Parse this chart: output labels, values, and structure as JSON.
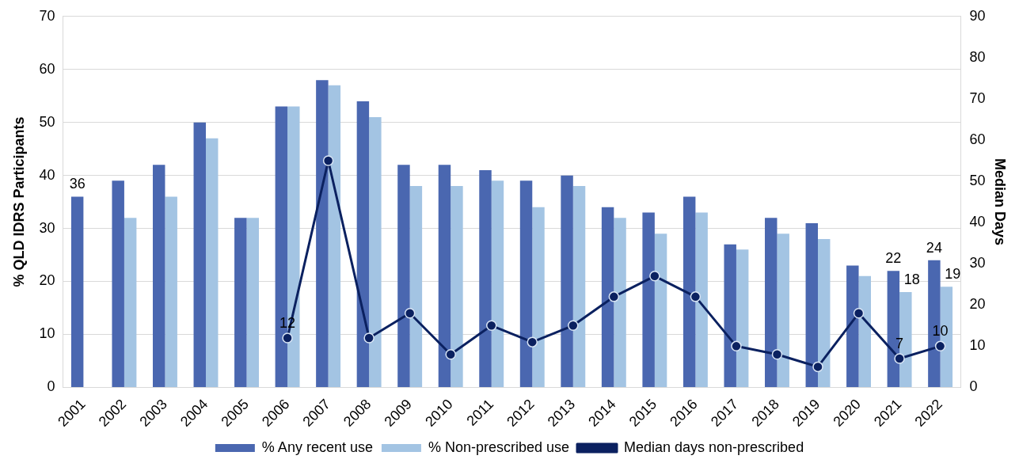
{
  "chart_data": {
    "type": "bar",
    "categories": [
      "2001",
      "2002",
      "2003",
      "2004",
      "2005",
      "2006",
      "2007",
      "2008",
      "2009",
      "2010",
      "2011",
      "2012",
      "2013",
      "2014",
      "2015",
      "2016",
      "2017",
      "2018",
      "2019",
      "2020",
      "2021",
      "2022"
    ],
    "ylabel": "% QLD IDRS Participants",
    "y2label": "Median Days",
    "ylim": [
      0,
      70
    ],
    "yticks": [
      0,
      10,
      20,
      30,
      40,
      50,
      60,
      70
    ],
    "y2lim": [
      0,
      90
    ],
    "y2ticks": [
      0,
      10,
      20,
      30,
      40,
      50,
      60,
      70,
      80,
      90
    ],
    "grid": "y",
    "legend": "bottom",
    "series": [
      {
        "name": "% Any recent use",
        "color": "#4a67b0",
        "values": [
          36,
          39,
          42,
          50,
          32,
          53,
          58,
          54,
          42,
          42,
          41,
          39,
          40,
          34,
          33,
          36,
          27,
          32,
          31,
          23,
          22,
          24
        ],
        "value_labels": [
          "36",
          null,
          null,
          null,
          null,
          null,
          null,
          null,
          null,
          null,
          null,
          null,
          null,
          null,
          null,
          null,
          null,
          null,
          null,
          null,
          "22",
          "24"
        ]
      },
      {
        "name": "% Non-prescribed use",
        "color": "#a3c4e3",
        "values": [
          null,
          32,
          36,
          47,
          32,
          53,
          57,
          51,
          38,
          38,
          39,
          34,
          38,
          32,
          29,
          33,
          26,
          29,
          28,
          21,
          18,
          19
        ],
        "value_labels": [
          null,
          null,
          null,
          null,
          null,
          null,
          null,
          null,
          null,
          null,
          null,
          null,
          null,
          null,
          null,
          null,
          null,
          null,
          null,
          null,
          "18",
          "19"
        ]
      },
      {
        "name": "Median days non-prescribed",
        "type": "line",
        "axis": "y2",
        "marker": "circle",
        "line_style": "solid",
        "color": "#0b2160",
        "values": [
          null,
          null,
          null,
          null,
          null,
          12,
          55,
          12,
          18,
          8,
          15,
          11,
          15,
          22,
          27,
          22,
          10,
          8,
          5,
          18,
          7,
          10
        ],
        "value_labels": [
          null,
          null,
          null,
          null,
          null,
          "12",
          null,
          null,
          null,
          null,
          null,
          null,
          null,
          null,
          null,
          null,
          null,
          null,
          null,
          null,
          "7",
          "10"
        ]
      }
    ]
  }
}
